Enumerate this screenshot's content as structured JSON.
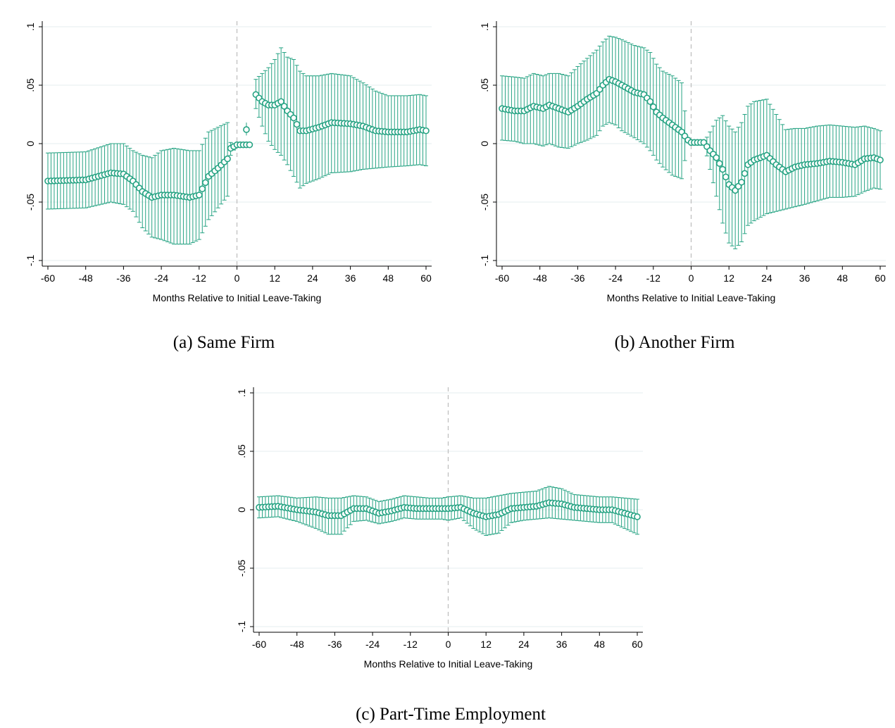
{
  "captions": [
    "(a) Same Firm",
    "(b) Another Firm",
    "(c) Part-Time Employment"
  ],
  "colors": {
    "series": "#26a383",
    "grid": "#e6ecef",
    "refline": "#bfbfbf",
    "axis": "#000000"
  },
  "chart_data": [
    {
      "type": "scatter",
      "title": "",
      "caption": "(a) Same Firm",
      "xlabel": "Months Relative to Initial Leave-Taking",
      "ylabel": "",
      "xlim": [
        -60,
        60
      ],
      "ylim": [
        -0.1,
        0.1
      ],
      "xticks": [
        "-60",
        "-48",
        "-36",
        "-24",
        "-12",
        "0",
        "12",
        "24",
        "36",
        "48",
        "60"
      ],
      "yticks": [
        "-.1",
        "-.05",
        "0",
        ".05",
        ".1"
      ],
      "grid": true,
      "reference_line_x": 0,
      "error_bars": "95% confidence interval",
      "x": [
        -60,
        -48,
        -40,
        -36,
        -33,
        -30,
        -27,
        -24,
        -20,
        -15,
        -12,
        -9,
        -6,
        -3,
        -2,
        0,
        3,
        4,
        5,
        6,
        8,
        10,
        12,
        14,
        16,
        18,
        20,
        22,
        26,
        30,
        36,
        40,
        44,
        48,
        54,
        58,
        60
      ],
      "y": [
        -0.032,
        -0.031,
        -0.025,
        -0.026,
        -0.032,
        -0.041,
        -0.046,
        -0.044,
        -0.044,
        -0.046,
        -0.044,
        -0.028,
        -0.021,
        -0.013,
        -0.004,
        -0.001,
        -0.001,
        -0.001,
        null,
        0.042,
        0.036,
        0.033,
        0.033,
        0.036,
        0.028,
        0.022,
        0.011,
        0.011,
        0.014,
        0.018,
        0.017,
        0.015,
        0.011,
        0.01,
        0.01,
        0.012,
        0.011
      ],
      "ci_low": [
        -0.056,
        -0.055,
        -0.05,
        -0.052,
        -0.058,
        -0.072,
        -0.08,
        -0.082,
        -0.086,
        -0.086,
        -0.082,
        -0.065,
        -0.055,
        -0.045,
        -0.01,
        -0.001,
        -0.001,
        -0.001,
        null,
        0.03,
        0.015,
        0.002,
        -0.005,
        -0.01,
        -0.018,
        -0.028,
        -0.038,
        -0.034,
        -0.03,
        -0.025,
        -0.024,
        -0.022,
        -0.021,
        -0.02,
        -0.019,
        -0.018,
        -0.019
      ],
      "ci_high": [
        -0.008,
        -0.007,
        0.0,
        0.0,
        -0.006,
        -0.01,
        -0.012,
        -0.006,
        -0.004,
        -0.006,
        -0.006,
        0.01,
        0.014,
        0.018,
        0.001,
        -0.001,
        -0.001,
        -0.001,
        null,
        0.055,
        0.06,
        0.065,
        0.072,
        0.082,
        0.074,
        0.072,
        0.062,
        0.058,
        0.058,
        0.06,
        0.058,
        0.052,
        0.045,
        0.041,
        0.041,
        0.042,
        0.041
      ],
      "outlier_point": {
        "x": 3,
        "y": 0.012,
        "ci": [
          0.007,
          0.018
        ]
      }
    },
    {
      "type": "scatter",
      "title": "",
      "caption": "(b) Another Firm",
      "xlabel": "Months Relative to Initial Leave-Taking",
      "ylabel": "",
      "xlim": [
        -60,
        60
      ],
      "ylim": [
        -0.1,
        0.1
      ],
      "xticks": [
        "-60",
        "-48",
        "-36",
        "-24",
        "-12",
        "0",
        "12",
        "24",
        "36",
        "48",
        "60"
      ],
      "yticks": [
        "-.1",
        "-.05",
        "0",
        ".05",
        ".1"
      ],
      "grid": true,
      "reference_line_x": 0,
      "error_bars": "95% confidence interval",
      "x": [
        -60,
        -56,
        -53,
        -50,
        -47,
        -45,
        -42,
        -39,
        -36,
        -33,
        -30,
        -28,
        -26,
        -24,
        -22,
        -18,
        -15,
        -13,
        -11,
        -9,
        -6,
        -3,
        -1,
        0,
        2,
        4,
        6,
        8,
        10,
        12,
        14,
        16,
        18,
        20,
        24,
        27,
        30,
        33,
        36,
        40,
        44,
        48,
        52,
        55,
        58,
        60
      ],
      "y": [
        0.03,
        0.028,
        0.028,
        0.032,
        0.03,
        0.033,
        0.03,
        0.027,
        0.032,
        0.038,
        0.043,
        0.05,
        0.055,
        0.053,
        0.05,
        0.044,
        0.042,
        0.036,
        0.027,
        0.022,
        0.016,
        0.01,
        0.003,
        0.001,
        0.001,
        0.001,
        -0.006,
        -0.012,
        -0.022,
        -0.035,
        -0.04,
        -0.033,
        -0.018,
        -0.014,
        -0.01,
        -0.018,
        -0.024,
        -0.02,
        -0.018,
        -0.017,
        -0.015,
        -0.016,
        -0.018,
        -0.013,
        -0.012,
        -0.014
      ],
      "ci_low": [
        0.003,
        0.002,
        0.0,
        0.0,
        -0.002,
        0.0,
        -0.003,
        -0.004,
        0.0,
        0.003,
        0.007,
        0.015,
        0.018,
        0.016,
        0.011,
        0.005,
        0.0,
        -0.006,
        -0.014,
        -0.02,
        -0.027,
        -0.03,
        0.001,
        0.001,
        0.001,
        0.001,
        -0.022,
        -0.045,
        -0.068,
        -0.085,
        -0.09,
        -0.084,
        -0.07,
        -0.066,
        -0.06,
        -0.058,
        -0.056,
        -0.054,
        -0.052,
        -0.049,
        -0.046,
        -0.046,
        -0.045,
        -0.041,
        -0.038,
        -0.039
      ],
      "ci_high": [
        0.058,
        0.057,
        0.056,
        0.06,
        0.058,
        0.06,
        0.06,
        0.058,
        0.066,
        0.073,
        0.08,
        0.087,
        0.092,
        0.091,
        0.089,
        0.084,
        0.082,
        0.078,
        0.068,
        0.062,
        0.058,
        0.052,
        0.004,
        0.001,
        0.001,
        0.001,
        0.01,
        0.02,
        0.024,
        0.015,
        0.01,
        0.018,
        0.032,
        0.036,
        0.038,
        0.025,
        0.012,
        0.013,
        0.013,
        0.015,
        0.016,
        0.015,
        0.014,
        0.015,
        0.013,
        0.011
      ]
    },
    {
      "type": "scatter",
      "title": "",
      "caption": "(c) Part-Time Employment",
      "xlabel": "Months Relative to Initial Leave-Taking",
      "ylabel": "",
      "xlim": [
        -60,
        60
      ],
      "ylim": [
        -0.1,
        0.1
      ],
      "xticks": [
        "-60",
        "-48",
        "-36",
        "-24",
        "-12",
        "0",
        "12",
        "24",
        "36",
        "48",
        "60"
      ],
      "yticks": [
        "-.1",
        "-.05",
        "0",
        ".05",
        ".1"
      ],
      "grid": true,
      "reference_line_x": 0,
      "error_bars": "95% confidence interval",
      "x": [
        -60,
        -54,
        -48,
        -42,
        -38,
        -34,
        -30,
        -26,
        -22,
        -18,
        -14,
        -10,
        -6,
        -2,
        0,
        4,
        8,
        12,
        16,
        20,
        24,
        28,
        32,
        36,
        40,
        44,
        48,
        52,
        56,
        60
      ],
      "y": [
        0.002,
        0.003,
        0.0,
        -0.002,
        -0.005,
        -0.005,
        0.001,
        0.001,
        -0.003,
        -0.001,
        0.002,
        0.001,
        0.001,
        0.001,
        0.001,
        0.002,
        -0.003,
        -0.006,
        -0.004,
        0.001,
        0.002,
        0.003,
        0.006,
        0.005,
        0.002,
        0.001,
        0.0,
        0.0,
        -0.003,
        -0.006
      ],
      "ci_low": [
        -0.007,
        -0.006,
        -0.01,
        -0.016,
        -0.021,
        -0.021,
        -0.01,
        -0.009,
        -0.012,
        -0.01,
        -0.007,
        -0.008,
        -0.008,
        -0.008,
        -0.009,
        -0.007,
        -0.016,
        -0.022,
        -0.02,
        -0.011,
        -0.009,
        -0.008,
        -0.007,
        -0.008,
        -0.009,
        -0.01,
        -0.011,
        -0.011,
        -0.016,
        -0.021
      ],
      "ci_high": [
        0.011,
        0.012,
        0.01,
        0.011,
        0.01,
        0.01,
        0.012,
        0.011,
        0.007,
        0.009,
        0.012,
        0.011,
        0.01,
        0.01,
        0.011,
        0.012,
        0.01,
        0.01,
        0.012,
        0.014,
        0.015,
        0.016,
        0.02,
        0.018,
        0.013,
        0.012,
        0.011,
        0.011,
        0.01,
        0.009
      ]
    }
  ]
}
